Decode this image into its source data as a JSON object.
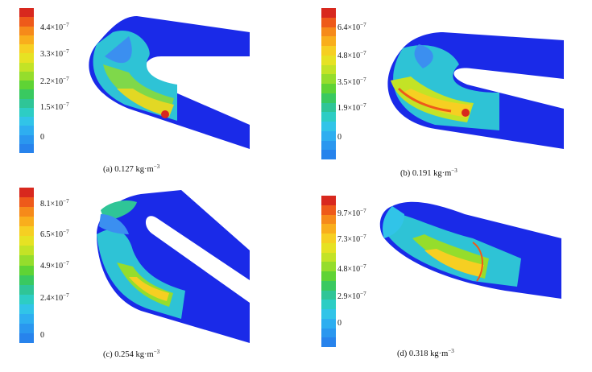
{
  "colorbar_colors": [
    "#d8281e",
    "#ee5a1a",
    "#f68a1a",
    "#f9ae1c",
    "#f6cf22",
    "#e6e223",
    "#c3e326",
    "#95dd2c",
    "#5fd335",
    "#39c960",
    "#2fc597",
    "#2dcdc4",
    "#31c4e8",
    "#2eaef0",
    "#2a97ef",
    "#2783ec"
  ],
  "panels": [
    {
      "id": "a",
      "caption": "(a) 0.127 kg·m",
      "caption_exp": "−3",
      "ticks": [
        "4.4×10",
        "3.3×10",
        "2.2×10",
        "1.5×10",
        "0"
      ],
      "tick_exps": [
        "−7",
        "−7",
        "−7",
        "−7",
        ""
      ]
    },
    {
      "id": "b",
      "caption": "(b) 0.191 kg·m",
      "caption_exp": "−3",
      "ticks": [
        "6.4×10",
        "4.8×10",
        "3.5×10",
        "1.9×10",
        "0"
      ],
      "tick_exps": [
        "−7",
        "−7",
        "−7",
        "−7",
        ""
      ]
    },
    {
      "id": "c",
      "caption": "(c) 0.254 kg·m",
      "caption_exp": "−3",
      "ticks": [
        "8.1×10",
        "6.5×10",
        "4.9×10",
        "2.4×10",
        "0"
      ],
      "tick_exps": [
        "−7",
        "−7",
        "−7",
        "−7",
        ""
      ]
    },
    {
      "id": "d",
      "caption": "(d) 0.318 kg·m",
      "caption_exp": "−3",
      "ticks": [
        "9.7×10",
        "7.3×10",
        "4.8×10",
        "2.9×10",
        "0"
      ],
      "tick_exps": [
        "−7",
        "−7",
        "−7",
        "−7",
        ""
      ]
    }
  ]
}
